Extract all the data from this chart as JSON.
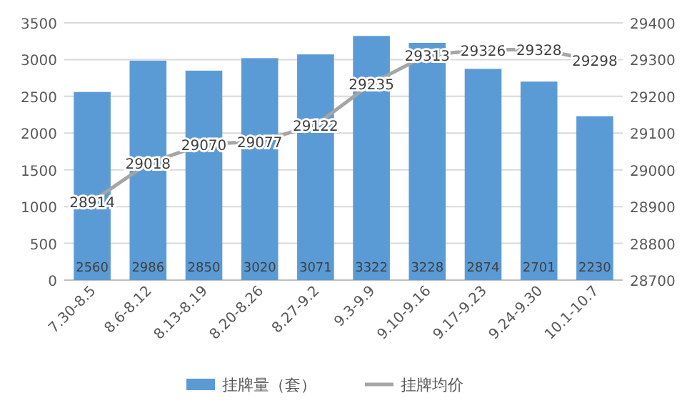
{
  "chart_data": {
    "type": "bar",
    "categories": [
      "7.30-8.5",
      "8.6-8.12",
      "8.13-8.19",
      "8.20-8.26",
      "8.27-9.2",
      "9.3-9.9",
      "9.10-9.16",
      "9.17-9.23",
      "9.24-9.30",
      "10.1-10.7"
    ],
    "series": [
      {
        "name": "挂牌量（套）",
        "color": "#5b9bd5",
        "values": [
          2560,
          2986,
          2850,
          3020,
          3071,
          3322,
          3228,
          2874,
          2701,
          2230
        ]
      },
      {
        "name": "挂牌均价",
        "type": "line",
        "axis": "y2",
        "color": "#a5a5a5",
        "marker": "none",
        "line_style": "solid",
        "values": [
          28914,
          29018,
          29070,
          29077,
          29122,
          29235,
          29313,
          29326,
          29328,
          29298
        ]
      }
    ],
    "ylim": [
      0,
      3500
    ],
    "yticks": [
      0,
      500,
      1000,
      1500,
      2000,
      2500,
      3000,
      3500
    ],
    "y2lim": [
      28700,
      29400
    ],
    "y2ticks": [
      28700,
      28800,
      28900,
      29000,
      29100,
      29200,
      29300,
      29400
    ],
    "grid": "y",
    "legend": "bottom",
    "data_labels": true
  }
}
